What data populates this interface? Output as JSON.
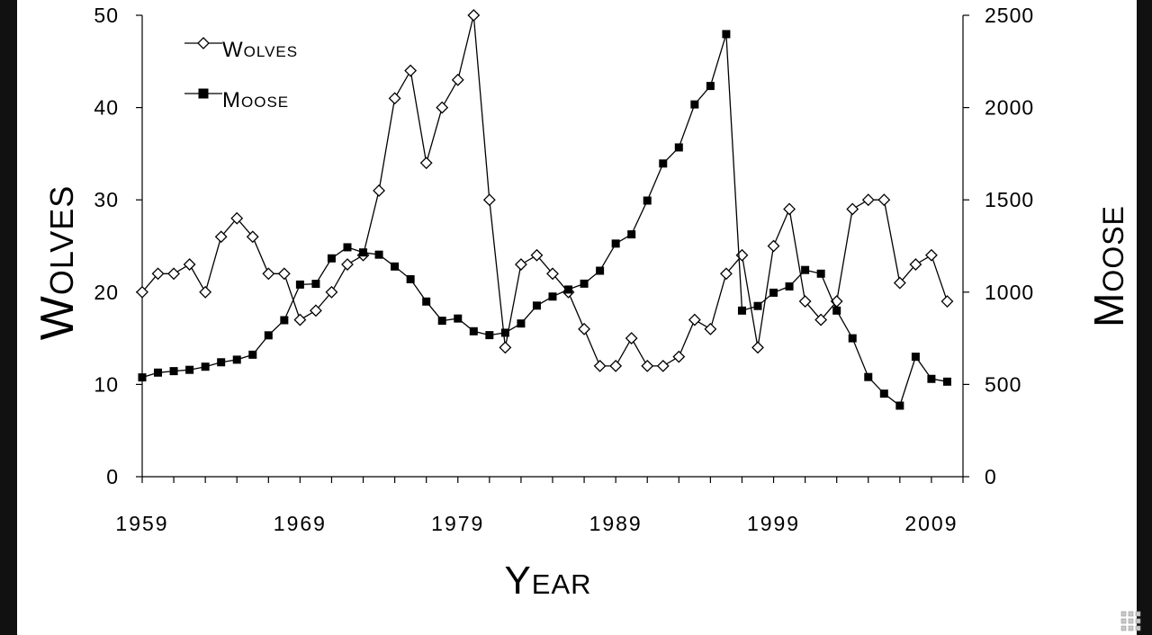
{
  "chart_data": {
    "type": "line",
    "xlabel": "Year",
    "ylabel_left": "Wolves",
    "ylabel_right": "Moose",
    "x_ticks": [
      "1959",
      "1969",
      "1979",
      "1989",
      "1999",
      "2009"
    ],
    "x_range": [
      1959,
      2011
    ],
    "y_left_ticks": [
      "0",
      "10",
      "20",
      "30",
      "40",
      "50"
    ],
    "y_left_range": [
      0,
      50
    ],
    "y_right_ticks": [
      "0",
      "500",
      "1000",
      "1500",
      "2000",
      "2500"
    ],
    "y_right_range": [
      0,
      2500
    ],
    "legend_position": "top-left",
    "grid": false,
    "series": [
      {
        "name": "Wolves",
        "axis": "left",
        "marker": "open-diamond",
        "x": [
          1959,
          1960,
          1961,
          1962,
          1963,
          1964,
          1965,
          1966,
          1967,
          1968,
          1969,
          1970,
          1971,
          1972,
          1973,
          1974,
          1975,
          1976,
          1977,
          1978,
          1979,
          1980,
          1981,
          1982,
          1983,
          1984,
          1985,
          1986,
          1987,
          1988,
          1989,
          1990,
          1991,
          1992,
          1993,
          1994,
          1995,
          1996,
          1997,
          1998,
          1999,
          2000,
          2001,
          2002,
          2003,
          2004,
          2005,
          2006,
          2007,
          2008,
          2009,
          2010
        ],
        "values": [
          20,
          22,
          22,
          23,
          20,
          26,
          28,
          26,
          22,
          22,
          17,
          18,
          20,
          23,
          24,
          31,
          41,
          44,
          34,
          40,
          43,
          50,
          30,
          14,
          23,
          24,
          22,
          20,
          16,
          12,
          12,
          15,
          12,
          12,
          13,
          17,
          16,
          22,
          24,
          14,
          25,
          29,
          19,
          17,
          19,
          29,
          30,
          30,
          21,
          23,
          24,
          19
        ]
      },
      {
        "name": "Moose",
        "axis": "right",
        "marker": "filled-square",
        "x": [
          1959,
          1960,
          1961,
          1962,
          1963,
          1964,
          1965,
          1966,
          1967,
          1968,
          1969,
          1970,
          1971,
          1972,
          1973,
          1974,
          1975,
          1976,
          1977,
          1978,
          1979,
          1980,
          1981,
          1982,
          1983,
          1984,
          1985,
          1986,
          1987,
          1988,
          1989,
          1990,
          1991,
          1992,
          1993,
          1994,
          1995,
          1996,
          1997,
          1998,
          1999,
          2000,
          2001,
          2002,
          2003,
          2004,
          2005,
          2006,
          2007,
          2008,
          2009,
          2010
        ],
        "values": [
          538,
          564,
          572,
          579,
          596,
          620,
          634,
          661,
          766,
          848,
          1041,
          1045,
          1183,
          1243,
          1215,
          1203,
          1139,
          1070,
          949,
          845,
          857,
          788,
          767,
          780,
          830,
          927,
          976,
          1014,
          1046,
          1116,
          1263,
          1313,
          1496,
          1697,
          1784,
          2017,
          2117,
          2398,
          900,
          925,
          997,
          1031,
          1120,
          1100,
          900,
          750,
          540,
          450,
          385,
          650,
          530,
          515
        ]
      }
    ]
  },
  "icons": {
    "corner": "corner-logo-icon"
  }
}
